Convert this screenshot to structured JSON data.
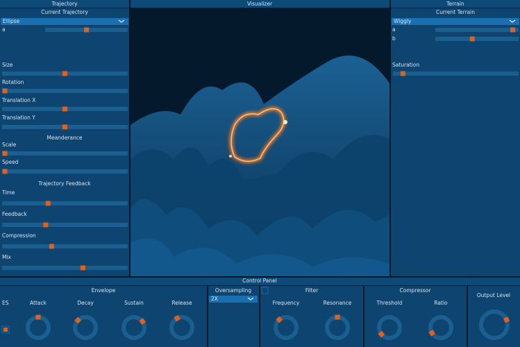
{
  "trajectory": {
    "title": "Trajectory",
    "subtitle": "Current Trajectory",
    "selected": "Ellipse",
    "sliders": [
      {
        "label": "a",
        "value": 0.5
      },
      {
        "label": "Size",
        "value": 0.5
      },
      {
        "label": "Rotation",
        "value": 0
      },
      {
        "label": "Translation X",
        "value": 0.5
      },
      {
        "label": "Translation Y",
        "value": 0.5
      },
      {
        "label": "Scale",
        "value": 0
      },
      {
        "label": "Speed",
        "value": 0
      },
      {
        "label": "Time",
        "value": 0.36
      },
      {
        "label": "Feedback",
        "value": 0.34
      },
      {
        "label": "Compression",
        "value": 0.39
      },
      {
        "label": "Mix",
        "value": 0.65
      }
    ],
    "sections": [
      "Meanderance",
      "Trajectory Feedback"
    ]
  },
  "visualizer": {
    "title": "Visualizer"
  },
  "terrain": {
    "title": "Terrain",
    "subtitle": "Current Terrain",
    "selected": "Wiggly",
    "sliders": [
      {
        "label": "a",
        "value": 0.96
      },
      {
        "label": "b",
        "value": 0.44
      },
      {
        "label": "Saturation",
        "value": 0.06
      }
    ]
  },
  "control_panel": {
    "title": "Control Panel",
    "envelope": {
      "title": "Envelope",
      "toggle": "ES",
      "knobs": [
        {
          "label": "Attack",
          "value": 0.5
        },
        {
          "label": "Decay",
          "value": 0.33
        },
        {
          "label": "Sustain",
          "value": 0.7
        },
        {
          "label": "Release",
          "value": 0.4
        }
      ]
    },
    "oversampling": {
      "title": "Oversampling",
      "selected": "2X"
    },
    "filter": {
      "title": "Filter",
      "knobs": [
        {
          "label": "Frequency",
          "value": 0.35
        },
        {
          "label": "Resonance",
          "value": 0.5
        }
      ]
    },
    "compressor": {
      "title": "Compressor",
      "knobs": [
        {
          "label": "Threshold",
          "value": 0.02
        },
        {
          "label": "Ratio",
          "value": 0.05
        }
      ]
    },
    "output": {
      "title": "Output Level",
      "value": 0.75
    }
  }
}
